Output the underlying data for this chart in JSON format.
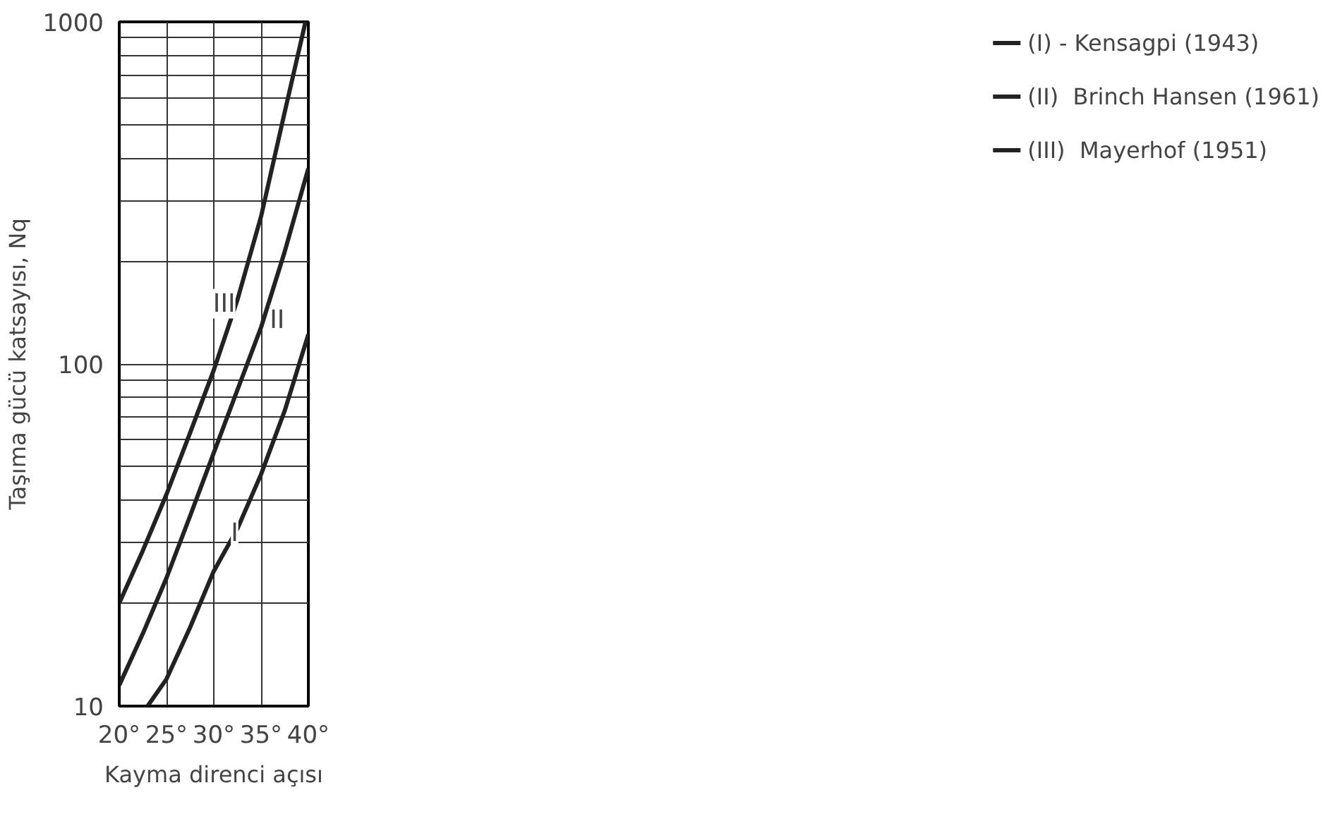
{
  "chart_data": {
    "type": "line",
    "xlabel": "Kayma direnci açısı",
    "ylabel": "Taşıma gücü katsayısı, Nq",
    "log": "y",
    "grid": true,
    "legend": "right",
    "marker": "none",
    "line_style": "solid",
    "xlim": [
      20,
      40
    ],
    "ylim": [
      10,
      1000
    ],
    "xticks": [
      {
        "value": 20,
        "label": "20°"
      },
      {
        "value": 25,
        "label": "25°"
      },
      {
        "value": 30,
        "label": "30°"
      },
      {
        "value": 35,
        "label": "35°"
      },
      {
        "value": 40,
        "label": "40°"
      }
    ],
    "yticks": [
      10,
      {
        "value": 20,
        "label": null
      },
      {
        "value": 30,
        "label": null
      },
      {
        "value": 40,
        "label": null
      },
      {
        "value": 50,
        "label": null
      },
      {
        "value": 60,
        "label": null
      },
      {
        "value": 70,
        "label": null
      },
      {
        "value": 80,
        "label": null
      },
      {
        "value": 90,
        "label": null
      },
      100,
      {
        "value": 200,
        "label": null
      },
      {
        "value": 300,
        "label": null
      },
      {
        "value": 400,
        "label": null
      },
      {
        "value": 500,
        "label": null
      },
      {
        "value": 600,
        "label": null
      },
      {
        "value": 700,
        "label": null
      },
      {
        "value": 800,
        "label": null
      },
      {
        "value": 900,
        "label": null
      },
      1000
    ],
    "series": [
      {
        "name": "(I) - Kensagpi (1943)",
        "color": "#222222",
        "x": [
          23,
          25,
          27.5,
          30,
          32.5,
          35,
          37.5,
          40
        ],
        "values": [
          10,
          12,
          17,
          24.8,
          33,
          47.6,
          73,
          122
        ]
      },
      {
        "name": "(II)  Brinch Hansen (1961)",
        "color": "#222222",
        "x": [
          20,
          22.5,
          25,
          27.5,
          30,
          32.5,
          35,
          37.5,
          40
        ],
        "values": [
          11.5,
          16.3,
          23.7,
          36,
          55,
          84,
          128,
          213,
          373
        ]
      },
      {
        "name": "(III)  Mayerhof (1951)",
        "color": "#222222",
        "x": [
          20,
          22.5,
          25,
          27.5,
          30,
          32.5,
          35,
          37.5,
          39.7
        ],
        "values": [
          20,
          28.5,
          41.6,
          63,
          96,
          154,
          270,
          545,
          1000
        ]
      }
    ],
    "annotations": [
      {
        "text": "I",
        "x": 32.2,
        "y": 32
      },
      {
        "text": "II",
        "x": 36.7,
        "y": 134
      },
      {
        "text": "III",
        "x": 31.1,
        "y": 150
      }
    ]
  }
}
